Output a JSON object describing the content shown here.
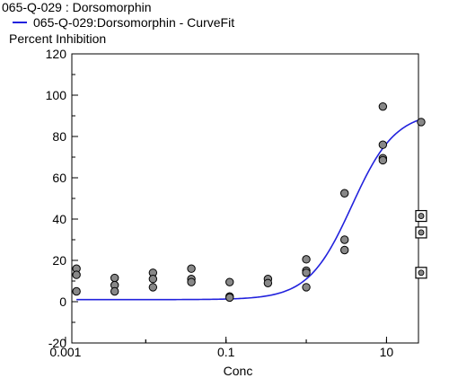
{
  "chart_data": {
    "type": "scatter",
    "title": "065-Q-029  : Dorsomorphin",
    "xlabel": "Conc",
    "ylabel": "Percent Inhibition",
    "x_scale": "log",
    "xlim": [
      0.0012,
      25
    ],
    "ylim": [
      -20,
      120
    ],
    "x_ticks": [
      0.001,
      0.1,
      10
    ],
    "x_tick_labels": [
      "0.001",
      "0.1",
      "10"
    ],
    "y_ticks": [
      -20,
      0,
      20,
      40,
      60,
      80,
      100,
      120
    ],
    "y_tick_labels": [
      "-20",
      "0",
      "20",
      "40",
      "60",
      "80",
      "100",
      "120"
    ],
    "grid": false,
    "legend": [
      {
        "name": "065-Q-029:Dorsomorphin - CurveFit",
        "color": "#2222dd"
      }
    ],
    "series": [
      {
        "name": "",
        "marker": "circle",
        "color": "#888888",
        "points": [
          [
            0.00137,
            16
          ],
          [
            0.00137,
            13
          ],
          [
            0.00137,
            5
          ],
          [
            0.0041,
            11.5
          ],
          [
            0.0041,
            8
          ],
          [
            0.0041,
            5
          ],
          [
            0.0123,
            14
          ],
          [
            0.0123,
            11
          ],
          [
            0.0123,
            7
          ],
          [
            0.037,
            16
          ],
          [
            0.037,
            11
          ],
          [
            0.037,
            9.5
          ],
          [
            0.111,
            9.5
          ],
          [
            0.111,
            2.5
          ],
          [
            0.111,
            2
          ],
          [
            0.333,
            11
          ],
          [
            0.333,
            9
          ],
          [
            1.0,
            20.5
          ],
          [
            1.0,
            15
          ],
          [
            1.0,
            14
          ],
          [
            1.0,
            7
          ],
          [
            3.0,
            52.5
          ],
          [
            3.0,
            30
          ],
          [
            3.0,
            25
          ],
          [
            9.0,
            94.5
          ],
          [
            9.0,
            76
          ],
          [
            9.0,
            69.5
          ],
          [
            9.0,
            68.5
          ],
          [
            27.0,
            87
          ]
        ]
      },
      {
        "name": "",
        "marker": "boxed-circle",
        "color": "#888888",
        "points": [
          [
            27.0,
            41.5
          ],
          [
            27.0,
            33.5
          ],
          [
            27.0,
            14
          ]
        ]
      }
    ],
    "curve_fit": {
      "name": "065-Q-029:Dorsomorphin - CurveFit",
      "color": "#2222dd",
      "model": "4PL",
      "bottom": 1,
      "top": 92,
      "ec50": 3.7,
      "hill": 1.6,
      "x_range": [
        0.00137,
        27
      ]
    }
  }
}
